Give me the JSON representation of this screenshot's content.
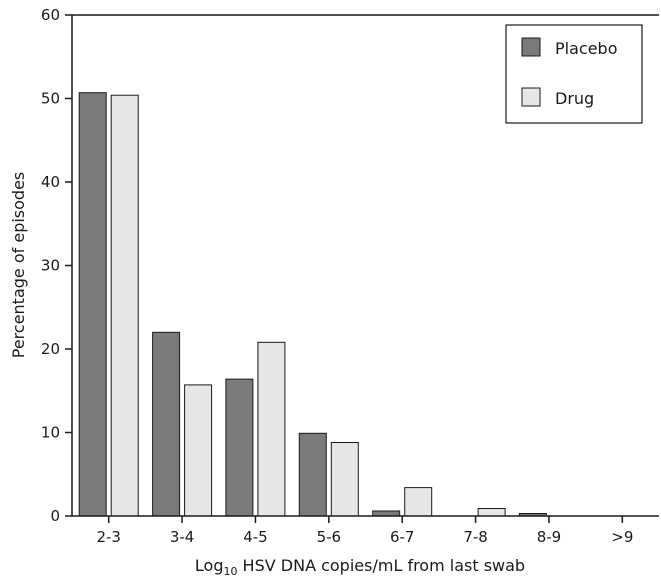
{
  "chart_data": {
    "type": "bar",
    "categories": [
      "2-3",
      "3-4",
      "4-5",
      "5-6",
      "6-7",
      "7-8",
      "8-9",
      ">9"
    ],
    "series": [
      {
        "name": "Placebo",
        "values": [
          50.7,
          22.0,
          16.4,
          9.9,
          0.6,
          0.0,
          0.3,
          0.0
        ],
        "color": "#7a7a7a"
      },
      {
        "name": "Drug",
        "values": [
          50.4,
          15.7,
          20.8,
          8.8,
          3.4,
          0.9,
          0.0,
          0.0
        ],
        "color": "#e6e6e6"
      }
    ],
    "xlabel": {
      "prefix": "Log",
      "subscript": "10",
      "suffix": " HSV DNA copies/mL from last swab"
    },
    "ylabel": "Percentage of episodes",
    "ylim": [
      0,
      60
    ],
    "yticks": [
      0,
      10,
      20,
      30,
      40,
      50,
      60
    ],
    "grid": false,
    "legend_position": "top-right"
  }
}
